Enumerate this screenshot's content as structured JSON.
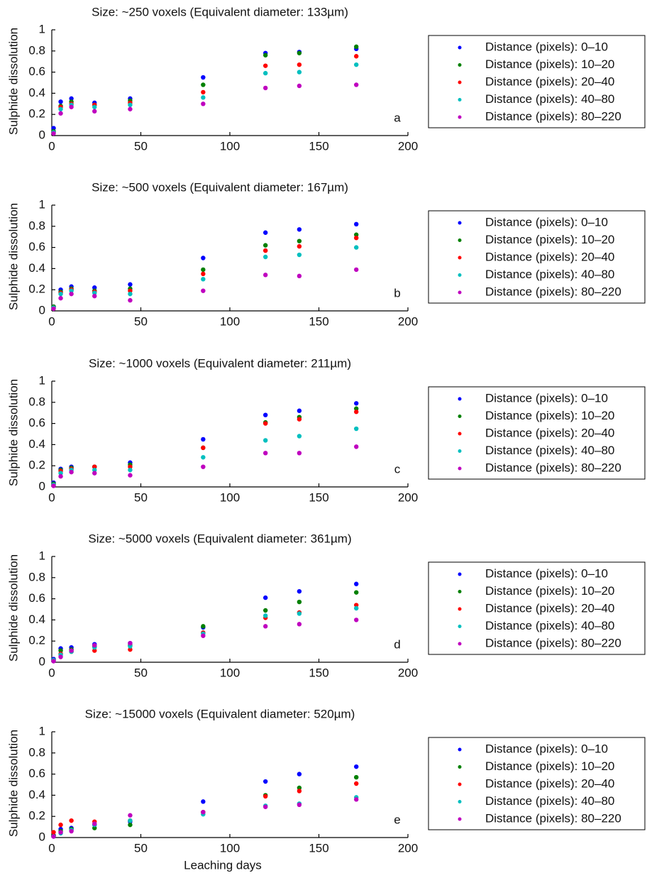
{
  "chart_data": [
    {
      "type": "scatter",
      "title": "Size: ~250 voxels (Equivalent diameter: 133µm)",
      "ylabel": "Sulphide dissolution",
      "panel_label": "a",
      "x": [
        1,
        5,
        11,
        24,
        44,
        85,
        120,
        139,
        171
      ],
      "xlim": [
        0,
        200
      ],
      "ylim": [
        0,
        1
      ],
      "xticks": [
        0,
        50,
        100,
        150,
        200
      ],
      "yticks": [
        0,
        0.2,
        0.4,
        0.6,
        0.8,
        1
      ],
      "series": [
        {
          "name": "Distance (pixels): 0–10",
          "color": "#0000ff",
          "values": [
            0.07,
            0.32,
            0.35,
            0.31,
            0.35,
            0.55,
            0.78,
            0.79,
            0.82
          ]
        },
        {
          "name": "Distance (pixels): 10–20",
          "color": "#008000",
          "values": [
            0.04,
            0.28,
            0.32,
            0.29,
            0.33,
            0.48,
            0.76,
            0.78,
            0.84
          ]
        },
        {
          "name": "Distance (pixels): 20–40",
          "color": "#ff0000",
          "values": [
            0.03,
            0.27,
            0.3,
            0.29,
            0.31,
            0.41,
            0.66,
            0.67,
            0.75
          ]
        },
        {
          "name": "Distance (pixels): 40–80",
          "color": "#00bfbf",
          "values": [
            0.03,
            0.25,
            0.29,
            0.27,
            0.29,
            0.36,
            0.59,
            0.6,
            0.67
          ]
        },
        {
          "name": "Distance (pixels): 80–220",
          "color": "#bf00bf",
          "values": [
            0.02,
            0.21,
            0.27,
            0.23,
            0.25,
            0.3,
            0.45,
            0.47,
            0.48
          ]
        }
      ]
    },
    {
      "type": "scatter",
      "title": "Size: ~500 voxels (Equivalent diameter: 167µm)",
      "ylabel": "Sulphide dissolution",
      "panel_label": "b",
      "x": [
        1,
        5,
        11,
        24,
        44,
        85,
        120,
        139,
        171
      ],
      "xlim": [
        0,
        200
      ],
      "ylim": [
        0,
        1
      ],
      "xticks": [
        0,
        50,
        100,
        150,
        200
      ],
      "yticks": [
        0,
        0.2,
        0.4,
        0.6,
        0.8,
        1
      ],
      "series": [
        {
          "name": "Distance (pixels): 0–10",
          "color": "#0000ff",
          "values": [
            0.04,
            0.2,
            0.23,
            0.22,
            0.25,
            0.5,
            0.74,
            0.77,
            0.82
          ]
        },
        {
          "name": "Distance (pixels): 10–20",
          "color": "#008000",
          "values": [
            0.04,
            0.18,
            0.21,
            0.19,
            0.21,
            0.39,
            0.62,
            0.66,
            0.72
          ]
        },
        {
          "name": "Distance (pixels): 20–40",
          "color": "#ff0000",
          "values": [
            0.03,
            0.17,
            0.2,
            0.18,
            0.19,
            0.35,
            0.57,
            0.61,
            0.69
          ]
        },
        {
          "name": "Distance (pixels): 40–80",
          "color": "#00bfbf",
          "values": [
            0.03,
            0.16,
            0.19,
            0.17,
            0.16,
            0.3,
            0.51,
            0.53,
            0.6
          ]
        },
        {
          "name": "Distance (pixels): 80–220",
          "color": "#bf00bf",
          "values": [
            0.02,
            0.12,
            0.16,
            0.14,
            0.1,
            0.19,
            0.34,
            0.33,
            0.39
          ]
        }
      ]
    },
    {
      "type": "scatter",
      "title": "Size: ~1000 voxels (Equivalent diameter: 211µm)",
      "ylabel": "Sulphide dissolution",
      "panel_label": "c",
      "x": [
        1,
        5,
        11,
        24,
        44,
        85,
        120,
        139,
        171
      ],
      "xlim": [
        0,
        200
      ],
      "ylim": [
        0,
        1
      ],
      "xticks": [
        0,
        50,
        100,
        150,
        200
      ],
      "yticks": [
        0,
        0.2,
        0.4,
        0.6,
        0.8,
        1
      ],
      "series": [
        {
          "name": "Distance (pixels): 0–10",
          "color": "#0000ff",
          "values": [
            0.04,
            0.17,
            0.19,
            0.19,
            0.23,
            0.45,
            0.68,
            0.72,
            0.79
          ]
        },
        {
          "name": "Distance (pixels): 10–20",
          "color": "#008000",
          "values": [
            0.03,
            0.16,
            0.18,
            0.19,
            0.21,
            0.37,
            0.61,
            0.66,
            0.74
          ]
        },
        {
          "name": "Distance (pixels): 20–40",
          "color": "#ff0000",
          "values": [
            0.02,
            0.15,
            0.17,
            0.19,
            0.19,
            0.37,
            0.6,
            0.64,
            0.71
          ]
        },
        {
          "name": "Distance (pixels): 40–80",
          "color": "#00bfbf",
          "values": [
            0.02,
            0.13,
            0.16,
            0.16,
            0.16,
            0.28,
            0.44,
            0.48,
            0.55
          ]
        },
        {
          "name": "Distance (pixels): 80–220",
          "color": "#bf00bf",
          "values": [
            0.01,
            0.1,
            0.14,
            0.13,
            0.11,
            0.19,
            0.32,
            0.32,
            0.38
          ]
        }
      ]
    },
    {
      "type": "scatter",
      "title": "Size: ~5000 voxels (Equivalent diameter: 361µm)",
      "ylabel": "Sulphide dissolution",
      "panel_label": "d",
      "x": [
        1,
        5,
        11,
        24,
        44,
        85,
        120,
        139,
        171
      ],
      "xlim": [
        0,
        200
      ],
      "ylim": [
        0,
        1
      ],
      "xticks": [
        0,
        50,
        100,
        150,
        200
      ],
      "yticks": [
        0,
        0.2,
        0.4,
        0.6,
        0.8,
        1
      ],
      "series": [
        {
          "name": "Distance (pixels): 0–10",
          "color": "#0000ff",
          "values": [
            0.03,
            0.13,
            0.14,
            0.17,
            0.18,
            0.33,
            0.61,
            0.67,
            0.74
          ]
        },
        {
          "name": "Distance (pixels): 10–20",
          "color": "#008000",
          "values": [
            0.02,
            0.11,
            0.12,
            0.15,
            0.16,
            0.34,
            0.49,
            0.57,
            0.66
          ]
        },
        {
          "name": "Distance (pixels): 20–40",
          "color": "#ff0000",
          "values": [
            0.02,
            0.08,
            0.1,
            0.11,
            0.12,
            0.28,
            0.42,
            0.47,
            0.54
          ]
        },
        {
          "name": "Distance (pixels): 40–80",
          "color": "#00bfbf",
          "values": [
            0.02,
            0.07,
            0.1,
            0.14,
            0.15,
            0.27,
            0.44,
            0.46,
            0.51
          ]
        },
        {
          "name": "Distance (pixels): 80–220",
          "color": "#bf00bf",
          "values": [
            0.01,
            0.05,
            0.11,
            0.16,
            0.18,
            0.25,
            0.34,
            0.36,
            0.4
          ]
        }
      ]
    },
    {
      "type": "scatter",
      "title": "Size: ~15000 voxels (Equivalent diameter: 520µm)",
      "ylabel": "Sulphide dissolution",
      "xlabel": "Leaching days",
      "panel_label": "e",
      "x": [
        1,
        5,
        11,
        24,
        44,
        85,
        120,
        139,
        171
      ],
      "xlim": [
        0,
        200
      ],
      "ylim": [
        0,
        1
      ],
      "xticks": [
        0,
        50,
        100,
        150,
        200
      ],
      "yticks": [
        0,
        0.2,
        0.4,
        0.6,
        0.8,
        1
      ],
      "series": [
        {
          "name": "Distance (pixels): 0–10",
          "color": "#0000ff",
          "values": [
            0.02,
            0.08,
            0.09,
            0.12,
            0.15,
            0.34,
            0.53,
            0.6,
            0.67
          ]
        },
        {
          "name": "Distance (pixels): 10–20",
          "color": "#008000",
          "values": [
            0.02,
            0.06,
            0.08,
            0.09,
            0.12,
            0.24,
            0.4,
            0.47,
            0.57
          ]
        },
        {
          "name": "Distance (pixels): 20–40",
          "color": "#ff0000",
          "values": [
            0.05,
            0.12,
            0.16,
            0.15,
            0.16,
            0.24,
            0.39,
            0.44,
            0.51
          ]
        },
        {
          "name": "Distance (pixels): 40–80",
          "color": "#00bfbf",
          "values": [
            0.01,
            0.04,
            0.07,
            0.12,
            0.16,
            0.22,
            0.3,
            0.32,
            0.38
          ]
        },
        {
          "name": "Distance (pixels): 80–220",
          "color": "#bf00bf",
          "values": [
            0.01,
            0.05,
            0.06,
            0.13,
            0.21,
            0.24,
            0.29,
            0.31,
            0.36
          ]
        }
      ]
    }
  ]
}
